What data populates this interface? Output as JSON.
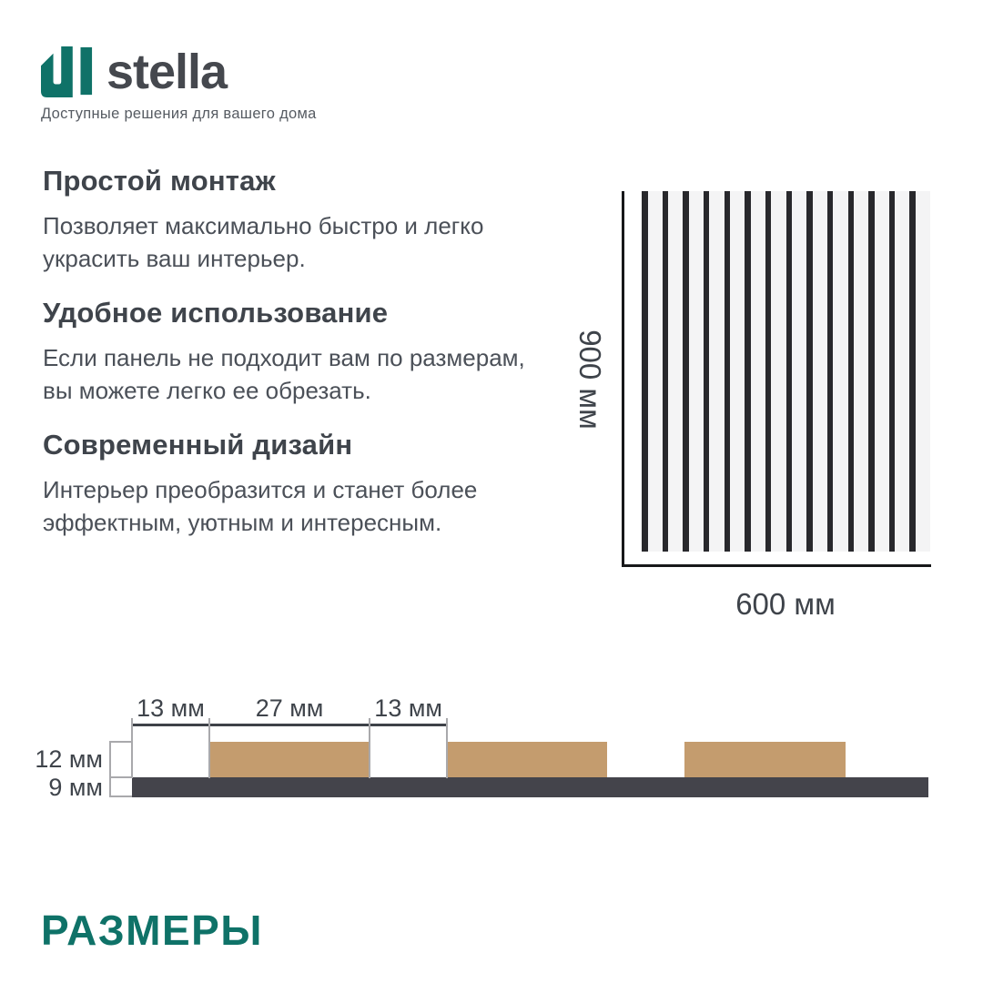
{
  "logo": {
    "brand": "stella",
    "tagline": "Доступные решения для вашего дома"
  },
  "features": [
    {
      "title": "Простой монтаж",
      "description": "Позволяет максимально быстро и легко украсить ваш интерьер."
    },
    {
      "title": "Удобное использование",
      "description": "Если панель не подходит вам по размерам, вы можете легко ее обрезать."
    },
    {
      "title": "Современный дизайн",
      "description": "Интерьер преобразится и станет более эффектным, уютным и интересным."
    }
  ],
  "panel_diagram": {
    "height_label": "900 мм",
    "width_label": "600 мм",
    "stripe_count": 14
  },
  "cross_section": {
    "top_dimensions": [
      "13 мм",
      "27 мм",
      "13 мм"
    ],
    "left_dimensions": [
      "12 мм",
      "9 мм"
    ],
    "gap_mm": 13,
    "slat_width_mm": 27,
    "slat_count": 3,
    "total_strip_mm": 134,
    "slat_thickness_mm": 12,
    "base_thickness_mm": 9
  },
  "section_title": "РАЗМЕРЫ",
  "colors": {
    "accent_teal": "#0F7268",
    "slat_wood": "#C49C6E",
    "base_dark": "#44444B",
    "stripe_dark": "#28282C",
    "panel_bg": "#F4F4F5",
    "text_dark": "#3F444B"
  }
}
